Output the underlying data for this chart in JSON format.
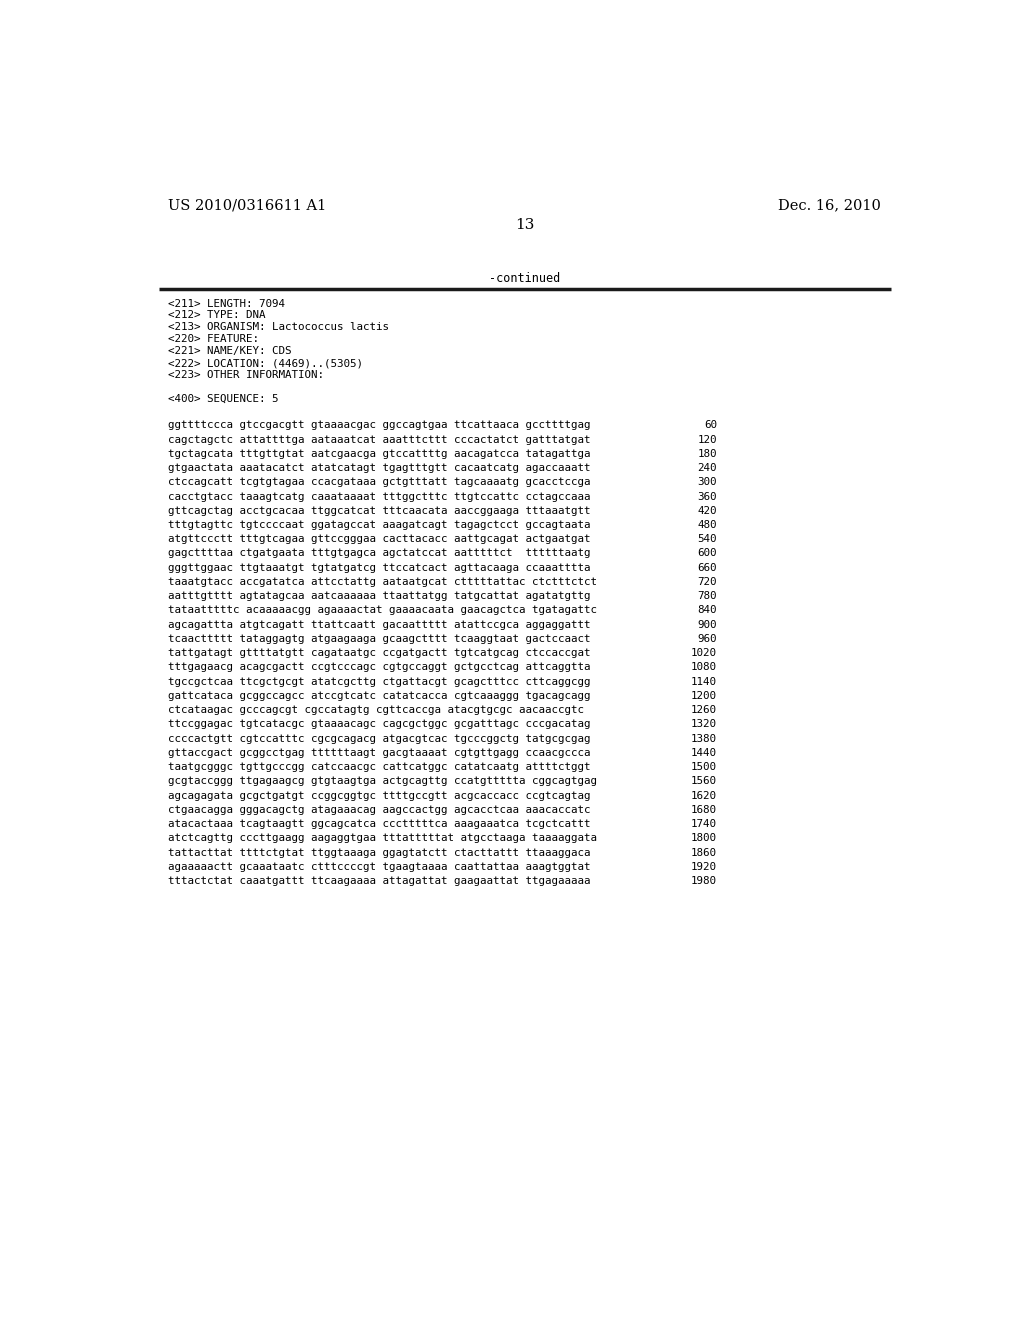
{
  "header_left": "US 2010/0316611 A1",
  "header_right": "Dec. 16, 2010",
  "page_number": "13",
  "continued_text": "-continued",
  "background_color": "#ffffff",
  "text_color": "#000000",
  "metadata_lines": [
    "<211> LENGTH: 7094",
    "<212> TYPE: DNA",
    "<213> ORGANISM: Lactococcus lactis",
    "<220> FEATURE:",
    "<221> NAME/KEY: CDS",
    "<222> LOCATION: (4469)..(5305)",
    "<223> OTHER INFORMATION:"
  ],
  "sequence_header": "<400> SEQUENCE: 5",
  "sequence_lines": [
    [
      "ggttttccca gtccgacgtt gtaaaacgac ggccagtgaa ttcattaaca gccttttgag",
      "60"
    ],
    [
      "cagctagctc attattttga aataaatcat aaatttcttt cccactatct gatttatgat",
      "120"
    ],
    [
      "tgctagcata tttgttgtat aatcgaacga gtccattttg aacagatcca tatagattga",
      "180"
    ],
    [
      "gtgaactata aaatacatct atatcatagt tgagtttgtt cacaatcatg agaccaaatt",
      "240"
    ],
    [
      "ctccagcatt tcgtgtagaa ccacgataaa gctgtttatt tagcaaaatg gcacctccga",
      "300"
    ],
    [
      "cacctgtacc taaagtcatg caaataaaat tttggctttc ttgtccattc cctagccaaa",
      "360"
    ],
    [
      "gttcagctag acctgcacaa ttggcatcat tttcaacata aaccggaaga tttaaatgtt",
      "420"
    ],
    [
      "tttgtagttc tgtccccaat ggatagccat aaagatcagt tagagctcct gccagtaata",
      "480"
    ],
    [
      "atgttccctt tttgtcagaa gttccgggaa cacttacacc aattgcagat actgaatgat",
      "540"
    ],
    [
      "gagcttttaa ctgatgaata tttgtgagca agctatccat aatttttct  ttttttaatg",
      "600"
    ],
    [
      "gggttggaac ttgtaaatgt tgtatgatcg ttccatcact agttacaaga ccaaatttta",
      "660"
    ],
    [
      "taaatgtacc accgatatca attcctattg aataatgcat ctttttattac ctctttctct",
      "720"
    ],
    [
      "aatttgtttt agtatagcaa aatcaaaaaa ttaattatgg tatgcattat agatatgttg",
      "780"
    ],
    [
      "tataatttttc acaaaaacgg agaaaactat gaaaacaata gaacagctca tgatagattc",
      "840"
    ],
    [
      "agcagattta atgtcagatt ttattcaatt gacaattttt atattccgca aggaggattt",
      "900"
    ],
    [
      "tcaacttttt tataggagtg atgaagaaga gcaagctttt tcaaggtaat gactccaact",
      "960"
    ],
    [
      "tattgatagt gttttatgtt cagataatgc ccgatgactt tgtcatgcag ctccaccgat",
      "1020"
    ],
    [
      "tttgagaacg acagcgactt ccgtcccagc cgtgccaggt gctgcctcag attcaggtta",
      "1080"
    ],
    [
      "tgccgctcaa ttcgctgcgt atatcgcttg ctgattacgt gcagctttcc cttcaggcgg",
      "1140"
    ],
    [
      "gattcataca gcggccagcc atccgtcatc catatcacca cgtcaaaggg tgacagcagg",
      "1200"
    ],
    [
      "ctcataagac gcccagcgt cgccatagtg cgttcaccga atacgtgcgc aacaaccgtc",
      "1260"
    ],
    [
      "ttccggagac tgtcatacgc gtaaaacagc cagcgctggc gcgatttagc cccgacatag",
      "1320"
    ],
    [
      "ccccactgtt cgtccatttc cgcgcagacg atgacgtcac tgcccggctg tatgcgcgag",
      "1380"
    ],
    [
      "gttaccgact gcggcctgag ttttttaagt gacgtaaaat cgtgttgagg ccaacgccca",
      "1440"
    ],
    [
      "taatgcgggc tgttgcccgg catccaacgc cattcatggc catatcaatg attttctggt",
      "1500"
    ],
    [
      "gcgtaccggg ttgagaagcg gtgtaagtga actgcagttg ccatgttttta cggcagtgag",
      "1560"
    ],
    [
      "agcagagata gcgctgatgt ccggcggtgc ttttgccgtt acgcaccacc ccgtcagtag",
      "1620"
    ],
    [
      "ctgaacagga gggacagctg atagaaacag aagccactgg agcacctcaa aaacaccatc",
      "1680"
    ],
    [
      "atacactaaa tcagtaagtt ggcagcatca ccctttttca aaagaaatca tcgctcattt",
      "1740"
    ],
    [
      "atctcagttg cccttgaagg aagaggtgaa tttatttttat atgcctaaga taaaaggata",
      "1800"
    ],
    [
      "tattacttat ttttctgtat ttggtaaaga ggagtatctt ctacttattt ttaaaggaca",
      "1860"
    ],
    [
      "agaaaaactt gcaaataatc ctttccccgt tgaagtaaaa caattattaa aaagtggtat",
      "1920"
    ],
    [
      "tttactctat caaatgattt ttcaagaaaa attagattat gaagaattat ttgagaaaaa",
      "1980"
    ]
  ]
}
